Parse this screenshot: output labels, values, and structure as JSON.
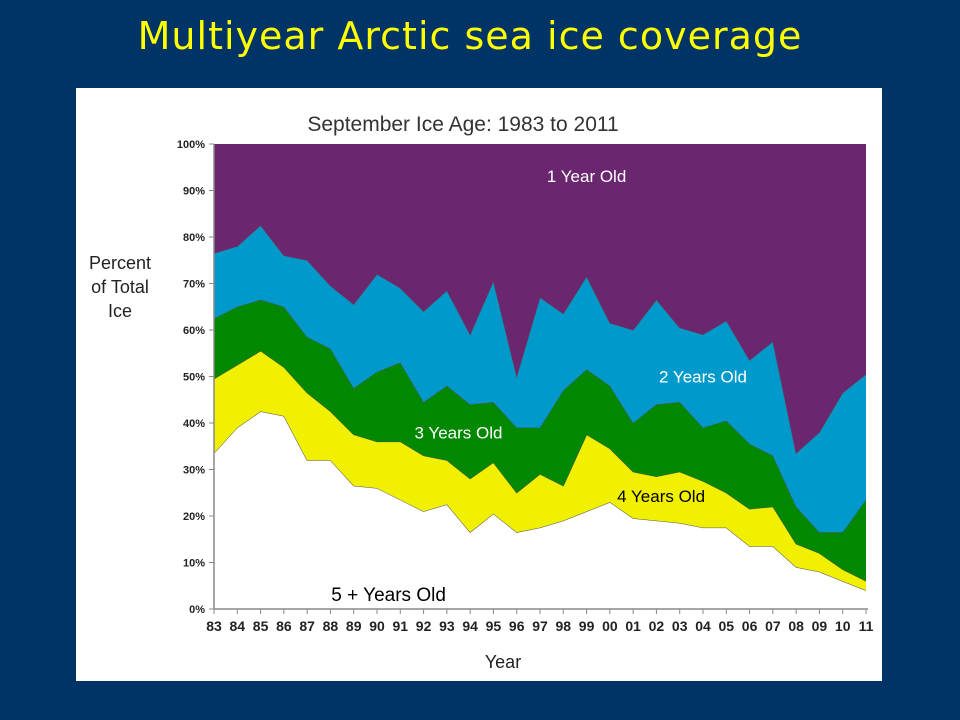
{
  "slide": {
    "title": "Multiyear Arctic sea ice coverage"
  },
  "chart_data": {
    "type": "area",
    "stacked": true,
    "title": "September Ice Age: 1983 to 2011",
    "xlabel": "Year",
    "ylabel_lines": [
      "Percent",
      "of Total",
      "Ice"
    ],
    "ylim": [
      0,
      100
    ],
    "yticks": [
      "0%",
      "10%",
      "20%",
      "30%",
      "40%",
      "50%",
      "60%",
      "70%",
      "80%",
      "90%",
      "100%"
    ],
    "categories": [
      "83",
      "84",
      "85",
      "86",
      "87",
      "88",
      "89",
      "90",
      "91",
      "92",
      "93",
      "94",
      "95",
      "96",
      "97",
      "98",
      "99",
      "00",
      "01",
      "02",
      "03",
      "04",
      "05",
      "06",
      "07",
      "08",
      "09",
      "10",
      "11"
    ],
    "grid": false,
    "series": [
      {
        "name": "5 + Years Old",
        "color": "#ffffff",
        "label_color": "#000000",
        "values": [
          33.5,
          39,
          42.5,
          41.5,
          32,
          32,
          26.5,
          26,
          23.5,
          21,
          22.5,
          16.5,
          20.5,
          16.5,
          17.5,
          19,
          21,
          23,
          19.5,
          19,
          18.5,
          17.5,
          17.5,
          13.5,
          13.5,
          9,
          8,
          6,
          4
        ]
      },
      {
        "name": "4 Years Old",
        "color": "#f0f000",
        "label_color": "#000000",
        "values": [
          16,
          13.5,
          13,
          10.5,
          14.5,
          10.5,
          11,
          10,
          12.5,
          12,
          9.5,
          11.5,
          11,
          8.5,
          11.5,
          7.5,
          16.5,
          11.5,
          10,
          9.5,
          11,
          10,
          7.5,
          8,
          8.5,
          5,
          4,
          2.5,
          2
        ]
      },
      {
        "name": "3 Years Old",
        "color": "#008800",
        "label_color": "#ffffff",
        "values": [
          13,
          12.5,
          11,
          13,
          12,
          13.5,
          10,
          15,
          17,
          11.5,
          16,
          16,
          13,
          14,
          10,
          20.5,
          14,
          13.5,
          10.5,
          15.5,
          15,
          11.5,
          15.5,
          14,
          11,
          8,
          4.5,
          8,
          17.5
        ]
      },
      {
        "name": "2 Years Old",
        "color": "#0099cc",
        "label_color": "#ffffff",
        "values": [
          14,
          13,
          16,
          11,
          16.5,
          13.5,
          18,
          21,
          16,
          19.5,
          20.5,
          15,
          26,
          11,
          28,
          16.5,
          20,
          13.5,
          20,
          22.5,
          16,
          20,
          21.5,
          18,
          24.5,
          11.5,
          21.5,
          30,
          27
        ]
      },
      {
        "name": "1 Year Old",
        "color": "#6b2670",
        "label_color": "#ffffff",
        "values": [
          23.5,
          22,
          17.5,
          24,
          25,
          30.5,
          34.5,
          28,
          31,
          36,
          31.5,
          41.5,
          29.5,
          50,
          33,
          36.5,
          28.5,
          38.5,
          40,
          33.5,
          39.5,
          41,
          38,
          46.5,
          42.5,
          66.5,
          62,
          53.5,
          49.5
        ]
      }
    ]
  }
}
